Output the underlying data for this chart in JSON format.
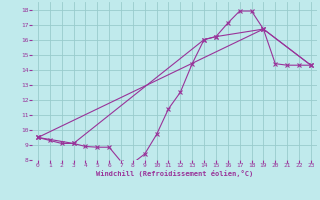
{
  "xlabel": "Windchill (Refroidissement éolien,°C)",
  "bg_color": "#c0eaec",
  "line_color": "#993399",
  "grid_color": "#99cccc",
  "xlim": [
    -0.5,
    23.5
  ],
  "ylim": [
    8,
    18.5
  ],
  "xticks": [
    0,
    1,
    2,
    3,
    4,
    5,
    6,
    7,
    8,
    9,
    10,
    11,
    12,
    13,
    14,
    15,
    16,
    17,
    18,
    19,
    20,
    21,
    22,
    23
  ],
  "yticks": [
    8,
    9,
    10,
    11,
    12,
    13,
    14,
    15,
    16,
    17,
    18
  ],
  "line1_x": [
    0,
    1,
    2,
    3,
    4,
    5,
    6,
    7,
    8,
    9,
    10,
    11,
    12,
    13,
    14,
    15,
    16,
    17,
    18,
    19,
    20,
    21,
    22,
    23
  ],
  "line1_y": [
    9.5,
    9.3,
    9.1,
    9.1,
    8.9,
    8.85,
    8.85,
    7.9,
    7.8,
    8.4,
    9.7,
    11.4,
    12.5,
    14.4,
    16.0,
    16.2,
    17.1,
    17.9,
    17.9,
    16.7,
    14.4,
    14.3,
    14.3,
    14.3
  ],
  "line2_x": [
    0,
    3,
    14,
    15,
    19,
    23
  ],
  "line2_y": [
    9.5,
    9.1,
    16.0,
    16.2,
    16.7,
    14.3
  ],
  "line3_x": [
    0,
    19,
    23
  ],
  "line3_y": [
    9.5,
    16.7,
    14.3
  ]
}
